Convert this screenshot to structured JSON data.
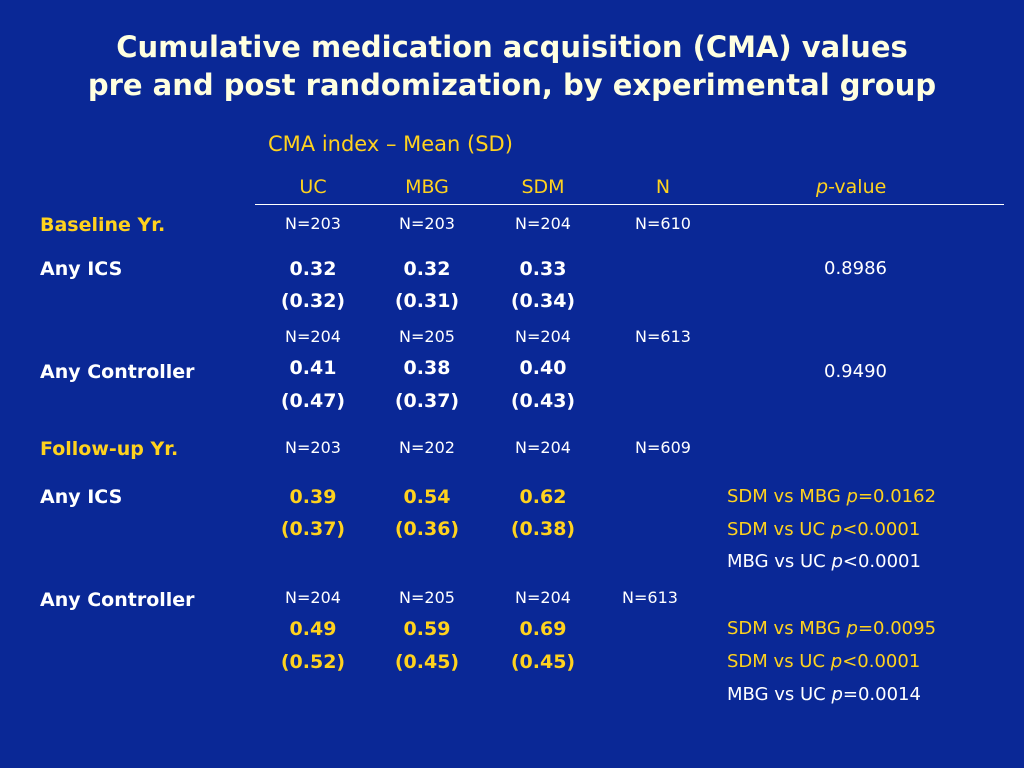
{
  "title": {
    "line1": "Cumulative medication acquisition (CMA) values",
    "line2": "pre and post randomization, by experimental group"
  },
  "subtitle": "CMA index – Mean (SD)",
  "columns": {
    "uc": "UC",
    "mbg": "MBG",
    "sdm": "SDM",
    "n": "N",
    "p_italic": "p",
    "p_rest": "-value"
  },
  "baseline": {
    "label": "Baseline Yr.",
    "n": [
      "N=203",
      "N=203",
      "N=204",
      "N=610"
    ],
    "ics": {
      "label": "Any ICS",
      "means": [
        "0.32",
        "0.32",
        "0.33"
      ],
      "sds": [
        "(0.32)",
        "(0.31)",
        "(0.34)"
      ],
      "p": "0.8986"
    },
    "controller": {
      "label": "Any Controller",
      "n": [
        "N=204",
        "N=205",
        "N=204",
        "N=613"
      ],
      "means": [
        "0.41",
        "0.38",
        "0.40"
      ],
      "sds": [
        "(0.47)",
        "(0.37)",
        "(0.43)"
      ],
      "p": "0.9490"
    }
  },
  "followup": {
    "label": "Follow-up Yr.",
    "n": [
      "N=203",
      "N=202",
      "N=204",
      "N=609"
    ],
    "ics": {
      "label": "Any ICS",
      "means": [
        "0.39",
        "0.54",
        "0.62"
      ],
      "sds": [
        "(0.37)",
        "(0.36)",
        "(0.38)"
      ],
      "p": [
        {
          "pre": "SDM vs MBG ",
          "p": "p",
          "post": "=0.0162",
          "color": "yellow"
        },
        {
          "pre": "SDM vs  UC  ",
          "p": "p",
          "post": "<0.0001",
          "color": "yellow"
        },
        {
          "pre": "MBG vs  UC  ",
          "p": "p",
          "post": "<0.0001",
          "color": "white"
        }
      ]
    },
    "controller": {
      "label": "Any Controller",
      "n": [
        "N=204",
        "N=205",
        "N=204",
        "N=613"
      ],
      "means": [
        "0.49",
        "0.59",
        "0.69"
      ],
      "sds": [
        "(0.52)",
        "(0.45)",
        "(0.45)"
      ],
      "p": [
        {
          "pre": "SDM vs MBG ",
          "p": "p",
          "post": "=0.0095",
          "color": "yellow"
        },
        {
          "pre": "SDM vs  UC  ",
          "p": "p",
          "post": "<0.0001",
          "color": "yellow"
        },
        {
          "pre": "MBG vs  UC  ",
          "p": "p",
          "post": "=0.0014",
          "color": "white"
        }
      ]
    }
  },
  "colors": {
    "background": "#0a2896",
    "yellow": "#ffd21e",
    "white": "#ffffff"
  }
}
